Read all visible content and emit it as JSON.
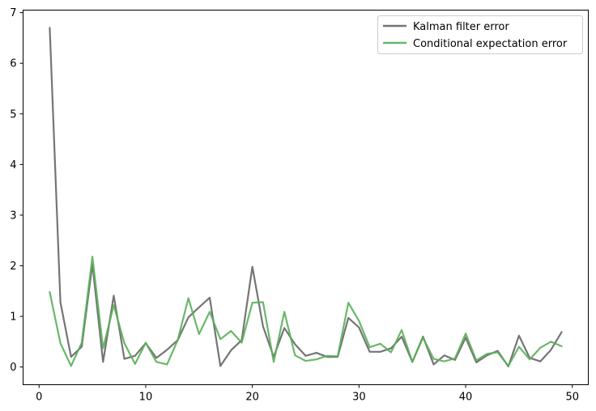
{
  "chart_data": {
    "type": "line",
    "title": "",
    "xlabel": "",
    "ylabel": "",
    "xlim": [
      -1.5,
      51.5
    ],
    "ylim": [
      -0.35,
      7.05
    ],
    "xticks": [
      0,
      10,
      20,
      30,
      40,
      50
    ],
    "yticks": [
      0,
      1,
      2,
      3,
      4,
      5,
      6,
      7
    ],
    "legend_position": "top-right",
    "grid": false,
    "x": [
      1,
      2,
      3,
      4,
      5,
      6,
      7,
      8,
      9,
      10,
      11,
      12,
      13,
      14,
      15,
      16,
      17,
      18,
      19,
      20,
      21,
      22,
      23,
      24,
      25,
      26,
      27,
      28,
      29,
      30,
      31,
      32,
      33,
      34,
      35,
      36,
      37,
      38,
      39,
      40,
      41,
      42,
      43,
      44,
      45,
      46,
      47,
      48,
      49
    ],
    "series": [
      {
        "name": "Kalman filter error",
        "color": "#666666",
        "values": [
          6.7,
          1.28,
          0.2,
          0.4,
          2.03,
          0.1,
          1.41,
          0.16,
          0.22,
          0.47,
          0.18,
          0.34,
          0.53,
          0.98,
          1.18,
          1.37,
          0.02,
          0.33,
          0.53,
          1.98,
          0.8,
          0.2,
          0.77,
          0.45,
          0.22,
          0.28,
          0.2,
          0.2,
          0.97,
          0.78,
          0.3,
          0.3,
          0.37,
          0.6,
          0.1,
          0.6,
          0.05,
          0.23,
          0.14,
          0.58,
          0.09,
          0.23,
          0.32,
          0.01,
          0.62,
          0.18,
          0.11,
          0.34,
          0.69
        ]
      },
      {
        "name": "Conditional expectation error",
        "color": "#5aaf5a",
        "values": [
          1.48,
          0.47,
          0.02,
          0.48,
          2.18,
          0.37,
          1.22,
          0.47,
          0.06,
          0.48,
          0.1,
          0.05,
          0.53,
          1.36,
          0.65,
          1.09,
          0.55,
          0.71,
          0.48,
          1.27,
          1.28,
          0.1,
          1.09,
          0.23,
          0.12,
          0.15,
          0.22,
          0.21,
          1.27,
          0.91,
          0.39,
          0.46,
          0.29,
          0.73,
          0.1,
          0.58,
          0.16,
          0.11,
          0.17,
          0.66,
          0.13,
          0.26,
          0.29,
          0.02,
          0.4,
          0.15,
          0.38,
          0.5,
          0.41
        ]
      }
    ]
  }
}
